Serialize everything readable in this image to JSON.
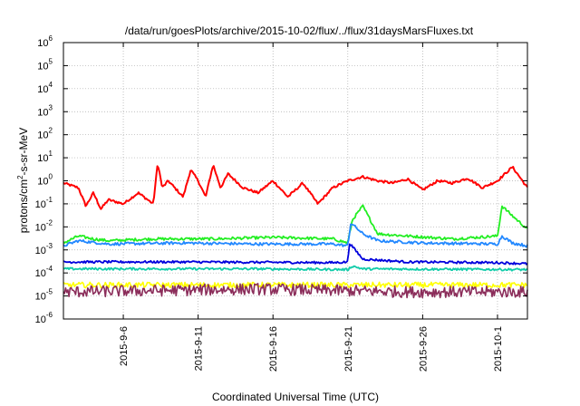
{
  "chart_data": {
    "type": "line",
    "title": "/data/run/goesPlots/archive/2015-10-02/flux/../flux/31daysMarsFluxes.txt",
    "xlabel": "Coordinated Universal Time (UTC)",
    "ylabel": {
      "prefix": "protons/cm",
      "sup": "2",
      "suffix": "-s-sr-MeV"
    },
    "y_scale": "log",
    "ylim": [
      1e-06,
      1000000.0
    ],
    "y_ticks": [
      {
        "base": "10",
        "exp": "-6"
      },
      {
        "base": "10",
        "exp": "-5"
      },
      {
        "base": "10",
        "exp": "-4"
      },
      {
        "base": "10",
        "exp": "-3"
      },
      {
        "base": "10",
        "exp": "-2"
      },
      {
        "base": "10",
        "exp": "-1"
      },
      {
        "base": "10",
        "exp": "0"
      },
      {
        "base": "10",
        "exp": "1"
      },
      {
        "base": "10",
        "exp": "2"
      },
      {
        "base": "10",
        "exp": "3"
      },
      {
        "base": "10",
        "exp": "4"
      },
      {
        "base": "10",
        "exp": "5"
      },
      {
        "base": "10",
        "exp": "6"
      }
    ],
    "xlim": [
      "2015-09-02",
      "2015-10-03"
    ],
    "x_ticks": [
      "2015-9-6",
      "2015-9-11",
      "2015-9-16",
      "2015-9-21",
      "2015-9-26",
      "2015-10-1"
    ],
    "grid": true,
    "legend": "none",
    "series": [
      {
        "color": "#ff0000",
        "noise_decades": 0.05,
        "points": [
          [
            "2015-09-02",
            0.8
          ],
          [
            "2015-09-03",
            0.5
          ],
          [
            "2015-09-03.5",
            0.08
          ],
          [
            "2015-09-04",
            0.3
          ],
          [
            "2015-09-04.5",
            0.06
          ],
          [
            "2015-09-05",
            0.15
          ],
          [
            "2015-09-06",
            0.1
          ],
          [
            "2015-09-07",
            0.3
          ],
          [
            "2015-09-08",
            0.1
          ],
          [
            "2015-09-08.3",
            6
          ],
          [
            "2015-09-08.6",
            0.5
          ],
          [
            "2015-09-09",
            1
          ],
          [
            "2015-09-10",
            0.2
          ],
          [
            "2015-09-10.5",
            3
          ],
          [
            "2015-09-11",
            1
          ],
          [
            "2015-09-11.5",
            0.2
          ],
          [
            "2015-09-12",
            5
          ],
          [
            "2015-09-12.5",
            0.5
          ],
          [
            "2015-09-13",
            2
          ],
          [
            "2015-09-14",
            0.5
          ],
          [
            "2015-09-15",
            0.3
          ],
          [
            "2015-09-16",
            1
          ],
          [
            "2015-09-17",
            0.2
          ],
          [
            "2015-09-18",
            0.8
          ],
          [
            "2015-09-19",
            0.1
          ],
          [
            "2015-09-20",
            0.5
          ],
          [
            "2015-09-21",
            1
          ],
          [
            "2015-09-22",
            1.5
          ],
          [
            "2015-09-23",
            1
          ],
          [
            "2015-09-24",
            0.8
          ],
          [
            "2015-09-25",
            1.2
          ],
          [
            "2015-09-26",
            0.4
          ],
          [
            "2015-09-27",
            1
          ],
          [
            "2015-09-28",
            0.8
          ],
          [
            "2015-09-29",
            1.3
          ],
          [
            "2015-09-30",
            0.5
          ],
          [
            "2015-10-01",
            1
          ],
          [
            "2015-10-02",
            4
          ],
          [
            "2015-10-03",
            0.5
          ]
        ]
      },
      {
        "color": "#22ee22",
        "noise_decades": 0.06,
        "points": [
          [
            "2015-09-02",
            0.002
          ],
          [
            "2015-09-03",
            0.004
          ],
          [
            "2015-09-04",
            0.003
          ],
          [
            "2015-09-05",
            0.0025
          ],
          [
            "2015-09-08",
            0.003
          ],
          [
            "2015-09-12",
            0.003
          ],
          [
            "2015-09-16",
            0.0035
          ],
          [
            "2015-09-20",
            0.003
          ],
          [
            "2015-09-21",
            0.002
          ],
          [
            "2015-09-21.3",
            0.02
          ],
          [
            "2015-09-22",
            0.08
          ],
          [
            "2015-09-23",
            0.005
          ],
          [
            "2015-09-25",
            0.004
          ],
          [
            "2015-09-28",
            0.003
          ],
          [
            "2015-10-01",
            0.004
          ],
          [
            "2015-10-01.3",
            0.08
          ],
          [
            "2015-10-02",
            0.03
          ],
          [
            "2015-10-03",
            0.008
          ]
        ]
      },
      {
        "color": "#2288ff",
        "noise_decades": 0.06,
        "points": [
          [
            "2015-09-02",
            0.0015
          ],
          [
            "2015-09-03",
            0.0025
          ],
          [
            "2015-09-05",
            0.0018
          ],
          [
            "2015-09-10",
            0.002
          ],
          [
            "2015-09-15",
            0.0018
          ],
          [
            "2015-09-20",
            0.0018
          ],
          [
            "2015-09-21",
            0.0015
          ],
          [
            "2015-09-21.2",
            0.015
          ],
          [
            "2015-09-22",
            0.005
          ],
          [
            "2015-09-23",
            0.0025
          ],
          [
            "2015-09-26",
            0.002
          ],
          [
            "2015-10-01",
            0.0018
          ],
          [
            "2015-10-01.3",
            0.004
          ],
          [
            "2015-10-02",
            0.002
          ],
          [
            "2015-10-03",
            0.0015
          ]
        ]
      },
      {
        "color": "#0000dd",
        "noise_decades": 0.05,
        "points": [
          [
            "2015-09-02",
            0.0003
          ],
          [
            "2015-09-10",
            0.0003
          ],
          [
            "2015-09-20",
            0.00028
          ],
          [
            "2015-09-21",
            0.0003
          ],
          [
            "2015-09-21.1",
            0.002
          ],
          [
            "2015-09-22",
            0.0004
          ],
          [
            "2015-09-25",
            0.0003
          ],
          [
            "2015-10-01",
            0.00028
          ],
          [
            "2015-10-03",
            0.00025
          ]
        ]
      },
      {
        "color": "#11ccaa",
        "noise_decades": 0.05,
        "points": [
          [
            "2015-09-02",
            0.00015
          ],
          [
            "2015-09-15",
            0.00015
          ],
          [
            "2015-09-21",
            0.00014
          ],
          [
            "2015-09-21.3",
            0.0002
          ],
          [
            "2015-09-22",
            0.00015
          ],
          [
            "2015-10-03",
            0.00014
          ]
        ]
      },
      {
        "color": "#ffff00",
        "noise_decades": 0.12,
        "points": [
          [
            "2015-09-02",
            3e-05
          ],
          [
            "2015-09-15",
            3e-05
          ],
          [
            "2015-09-25",
            3e-05
          ],
          [
            "2015-10-03",
            3e-05
          ]
        ]
      },
      {
        "color": "#8b2d5a",
        "noise_decades": 0.25,
        "points": [
          [
            "2015-09-02",
            1.5e-05
          ],
          [
            "2015-09-15",
            2e-05
          ],
          [
            "2015-09-25",
            1.5e-05
          ],
          [
            "2015-10-03",
            1.5e-05
          ]
        ]
      }
    ]
  }
}
